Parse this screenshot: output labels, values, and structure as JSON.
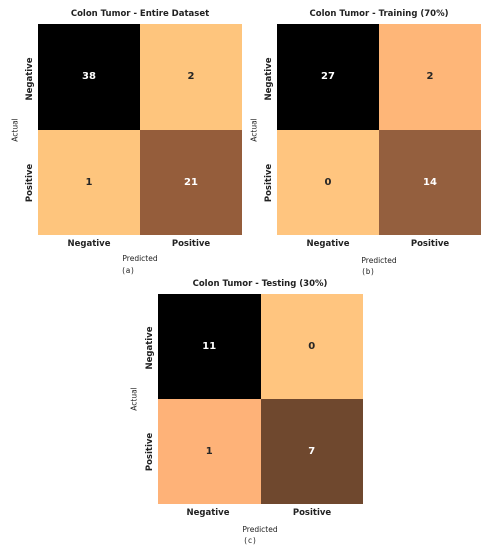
{
  "chart_data": [
    {
      "type": "heatmap",
      "title": "Colon Tumor - Entire Dataset",
      "xlabel": "Predicted",
      "ylabel": "Actual",
      "x_categories": [
        "Negative",
        "Positive"
      ],
      "y_categories": [
        "Negative",
        "Positive"
      ],
      "values": [
        [
          38,
          2
        ],
        [
          1,
          21
        ]
      ],
      "cell_colors": [
        [
          "#000000",
          "#fec57d"
        ],
        [
          "#fec57d",
          "#955d3b"
        ]
      ],
      "caption": "(a)"
    },
    {
      "type": "heatmap",
      "title": "Colon Tumor - Training (70%)",
      "xlabel": "Predicted",
      "ylabel": "Actual",
      "x_categories": [
        "Negative",
        "Positive"
      ],
      "y_categories": [
        "Negative",
        "Positive"
      ],
      "values": [
        [
          27,
          2
        ],
        [
          0,
          14
        ]
      ],
      "cell_colors": [
        [
          "#000000",
          "#feb678"
        ],
        [
          "#ffc57f",
          "#945f3e"
        ]
      ],
      "caption": "(b)"
    },
    {
      "type": "heatmap",
      "title": "Colon Tumor - Testing (30%)",
      "xlabel": "Predicted",
      "ylabel": "Actual",
      "x_categories": [
        "Negative",
        "Positive"
      ],
      "y_categories": [
        "Negative",
        "Positive"
      ],
      "values": [
        [
          11,
          0
        ],
        [
          1,
          7
        ]
      ],
      "cell_colors": [
        [
          "#000000",
          "#ffc57f"
        ],
        [
          "#feb278",
          "#6f482e"
        ]
      ],
      "caption": "(c)"
    }
  ]
}
